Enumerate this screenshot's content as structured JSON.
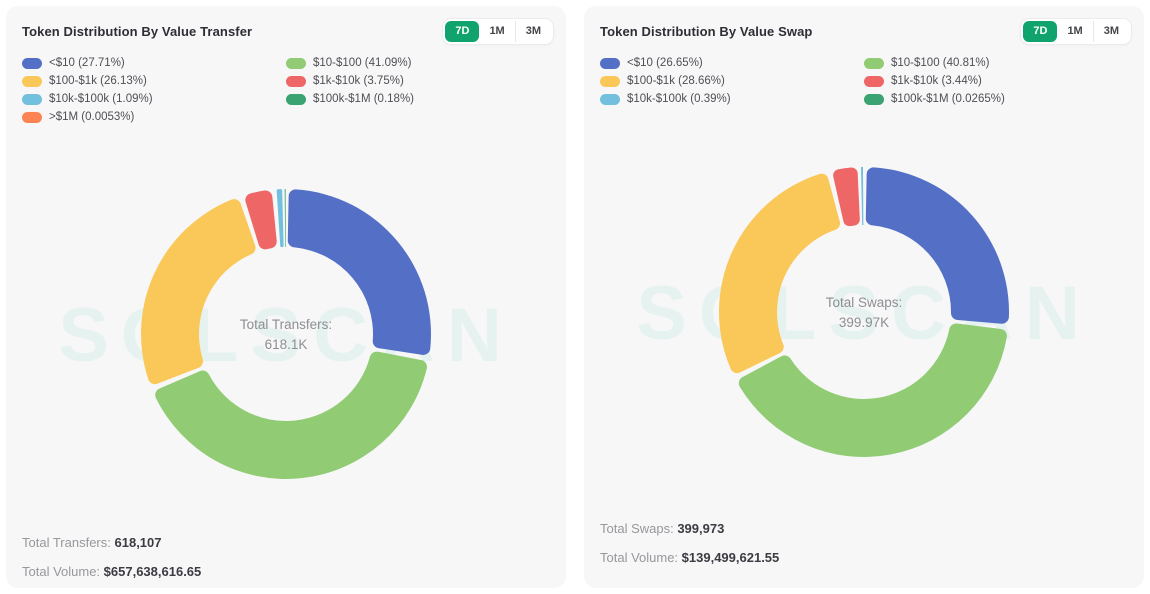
{
  "watermark": "SOLSCAN",
  "colors": {
    "page_bg": "#ffffff",
    "card_bg": "#f7f7f8",
    "accent_green": "#11a36e",
    "watermark_color": "#e6f2ef",
    "palette": [
      "#5470c6",
      "#91cc75",
      "#fac858",
      "#ee6666",
      "#73c0de",
      "#3ba272",
      "#fc8452"
    ]
  },
  "cards": [
    {
      "title": "Token Distribution By Value Transfer",
      "range_buttons": [
        {
          "label": "7D",
          "active": true
        },
        {
          "label": "1M",
          "active": false
        },
        {
          "label": "3M",
          "active": false
        }
      ],
      "stats": [
        {
          "label": "Total Transfers:",
          "value": "618,107"
        },
        {
          "label": "Total Volume:",
          "value": "$657,638,616.65"
        }
      ]
    },
    {
      "title": "Token Distribution By Value Swap",
      "range_buttons": [
        {
          "label": "7D",
          "active": true
        },
        {
          "label": "1M",
          "active": false
        },
        {
          "label": "3M",
          "active": false
        }
      ],
      "stats": [
        {
          "label": "Total Swaps:",
          "value": "399,973"
        },
        {
          "label": "Total Volume:",
          "value": "$139,499,621.55"
        }
      ]
    }
  ],
  "chart_data": [
    {
      "type": "pie",
      "subtype": "donut",
      "title": "Token Distribution By Value Transfer",
      "legend_position": "top",
      "direction": "clockwise",
      "start_angle_deg": 0,
      "inner_radius_ratio": 0.6,
      "center_label": "Total Transfers:",
      "center_value": "618.1K",
      "total_count": 618107,
      "total_volume_usd": 657638616.65,
      "slices": [
        {
          "label": "<$10",
          "percent": 27.71,
          "percent_display": "27.71%",
          "color": "#5470c6"
        },
        {
          "label": "$10-$100",
          "percent": 41.09,
          "percent_display": "41.09%",
          "color": "#91cc75"
        },
        {
          "label": "$100-$1k",
          "percent": 26.13,
          "percent_display": "26.13%",
          "color": "#fac858"
        },
        {
          "label": "$1k-$10k",
          "percent": 3.75,
          "percent_display": "3.75%",
          "color": "#ee6666"
        },
        {
          "label": "$10k-$100k",
          "percent": 1.09,
          "percent_display": "1.09%",
          "color": "#73c0de"
        },
        {
          "label": "$100k-$1M",
          "percent": 0.18,
          "percent_display": "0.18%",
          "color": "#3ba272"
        },
        {
          "label": ">$1M",
          "percent": 0.0053,
          "percent_display": "0.0053%",
          "color": "#fc8452"
        }
      ]
    },
    {
      "type": "pie",
      "subtype": "donut",
      "title": "Token Distribution By Value Swap",
      "legend_position": "top",
      "direction": "clockwise",
      "start_angle_deg": 0,
      "inner_radius_ratio": 0.6,
      "center_label": "Total Swaps:",
      "center_value": "399.97K",
      "total_count": 399973,
      "total_volume_usd": 139499621.55,
      "slices": [
        {
          "label": "<$10",
          "percent": 26.65,
          "percent_display": "26.65%",
          "color": "#5470c6"
        },
        {
          "label": "$10-$100",
          "percent": 40.81,
          "percent_display": "40.81%",
          "color": "#91cc75"
        },
        {
          "label": "$100-$1k",
          "percent": 28.66,
          "percent_display": "28.66%",
          "color": "#fac858"
        },
        {
          "label": "$1k-$10k",
          "percent": 3.44,
          "percent_display": "3.44%",
          "color": "#ee6666"
        },
        {
          "label": "$10k-$100k",
          "percent": 0.39,
          "percent_display": "0.39%",
          "color": "#73c0de"
        },
        {
          "label": "$100k-$1M",
          "percent": 0.0265,
          "percent_display": "0.0265%",
          "color": "#3ba272"
        }
      ]
    }
  ]
}
